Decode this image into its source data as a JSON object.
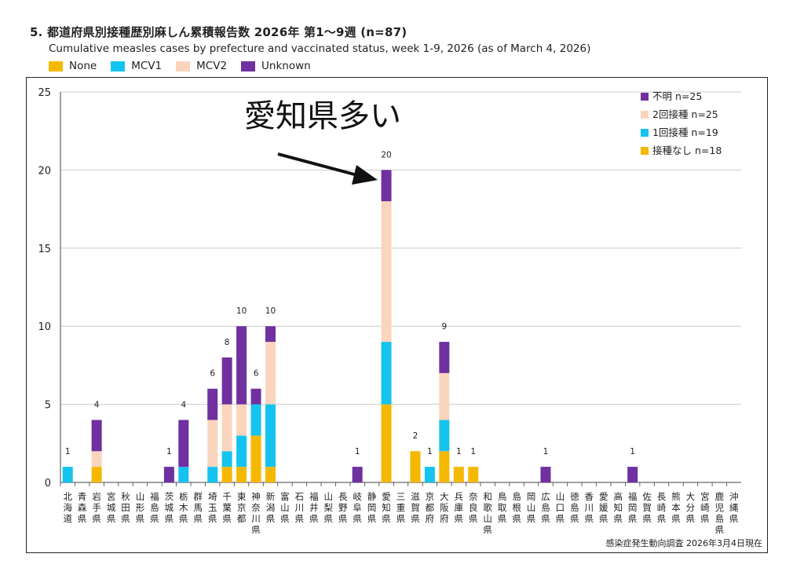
{
  "title_ja": "5. 都道府県別接種歴別麻しん累積報告数  2026年 第1～9週 (n=87)",
  "title_en": "Cumulative measles cases by prefecture and vaccinated status, week 1-9, 2026 (as of March 4, 2026)",
  "colors": {
    "none": "#F5B800",
    "mcv1": "#14C3F0",
    "mcv2": "#FAD5BE",
    "unknown": "#7030A0"
  },
  "legend_top": [
    {
      "key": "none",
      "label": "None"
    },
    {
      "key": "mcv1",
      "label": "MCV1"
    },
    {
      "key": "mcv2",
      "label": "MCV2"
    },
    {
      "key": "unknown",
      "label": "Unknown"
    }
  ],
  "annotation": "愛知県多い",
  "source_note": "感染症発生動向調査 2026年3月4日現在",
  "chart_data": {
    "type": "bar",
    "stacked": true,
    "ylim": [
      0,
      25
    ],
    "yticks": [
      0,
      5,
      10,
      15,
      20,
      25
    ],
    "legend_position": "top-right",
    "legend_inner": [
      {
        "key": "unknown",
        "label": "不明 n=25"
      },
      {
        "key": "mcv2",
        "label": "2回接種 n=25"
      },
      {
        "key": "mcv1",
        "label": "1回接種 n=19"
      },
      {
        "key": "none",
        "label": "接種なし n=18"
      }
    ],
    "categories": [
      "北海道",
      "青森県",
      "岩手県",
      "宮城県",
      "秋田県",
      "山形県",
      "福島県",
      "茨城県",
      "栃木県",
      "群馬県",
      "埼玉県",
      "千葉県",
      "東京都",
      "神奈川県",
      "新潟県",
      "富山県",
      "石川県",
      "福井県",
      "山梨県",
      "長野県",
      "岐阜県",
      "静岡県",
      "愛知県",
      "三重県",
      "滋賀県",
      "京都府",
      "大阪府",
      "兵庫県",
      "奈良県",
      "和歌山県",
      "鳥取県",
      "島根県",
      "岡山県",
      "広島県",
      "山口県",
      "徳島県",
      "香川県",
      "愛媛県",
      "高知県",
      "福岡県",
      "佐賀県",
      "長崎県",
      "熊本県",
      "大分県",
      "宮崎県",
      "鹿児島県",
      "沖縄県"
    ],
    "series": [
      {
        "key": "none",
        "name": "接種なし",
        "values": [
          0,
          0,
          1,
          0,
          0,
          0,
          0,
          0,
          0,
          0,
          0,
          1,
          1,
          3,
          1,
          0,
          0,
          0,
          0,
          0,
          0,
          0,
          5,
          0,
          2,
          0,
          2,
          1,
          1,
          0,
          0,
          0,
          0,
          0,
          0,
          0,
          0,
          0,
          0,
          0,
          0,
          0,
          0,
          0,
          0,
          0,
          0
        ]
      },
      {
        "key": "mcv1",
        "name": "1回接種",
        "values": [
          1,
          0,
          0,
          0,
          0,
          0,
          0,
          0,
          1,
          0,
          1,
          1,
          2,
          2,
          4,
          0,
          0,
          0,
          0,
          0,
          0,
          0,
          4,
          0,
          0,
          1,
          2,
          0,
          0,
          0,
          0,
          0,
          0,
          0,
          0,
          0,
          0,
          0,
          0,
          0,
          0,
          0,
          0,
          0,
          0,
          0,
          0
        ]
      },
      {
        "key": "mcv2",
        "name": "2回接種",
        "values": [
          0,
          0,
          1,
          0,
          0,
          0,
          0,
          0,
          0,
          0,
          3,
          3,
          2,
          0,
          4,
          0,
          0,
          0,
          0,
          0,
          0,
          0,
          9,
          0,
          0,
          0,
          3,
          0,
          0,
          0,
          0,
          0,
          0,
          0,
          0,
          0,
          0,
          0,
          0,
          0,
          0,
          0,
          0,
          0,
          0,
          0,
          0
        ]
      },
      {
        "key": "unknown",
        "name": "不明",
        "values": [
          0,
          0,
          2,
          0,
          0,
          0,
          0,
          1,
          3,
          0,
          2,
          3,
          5,
          1,
          1,
          0,
          0,
          0,
          0,
          0,
          1,
          0,
          2,
          0,
          0,
          0,
          2,
          0,
          0,
          0,
          0,
          0,
          0,
          1,
          0,
          0,
          0,
          0,
          0,
          1,
          0,
          0,
          0,
          0,
          0,
          0,
          0
        ]
      }
    ],
    "totals": [
      1,
      0,
      4,
      0,
      0,
      0,
      0,
      1,
      4,
      0,
      6,
      8,
      10,
      6,
      10,
      0,
      0,
      0,
      0,
      0,
      1,
      0,
      20,
      0,
      2,
      1,
      9,
      1,
      1,
      0,
      0,
      0,
      0,
      1,
      0,
      0,
      0,
      0,
      0,
      1,
      0,
      0,
      0,
      0,
      0,
      0,
      0
    ]
  }
}
